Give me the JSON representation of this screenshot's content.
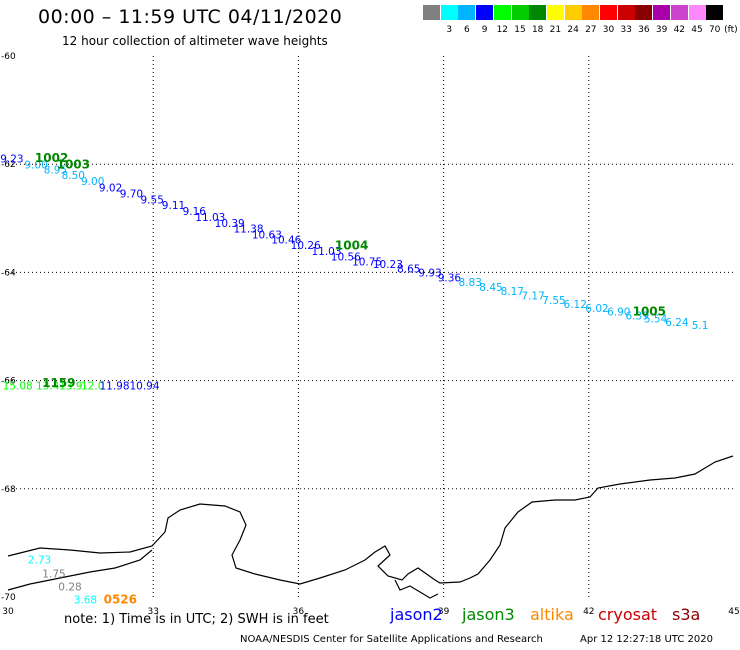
{
  "header": {
    "title": "00:00 – 11:59 UTC 04/11/2020",
    "subtitle": "12 hour collection of altimeter wave heights"
  },
  "legend": {
    "unit_label": "(ft)",
    "bins": [
      {
        "label": "",
        "color": "#808080"
      },
      {
        "label": "3",
        "color": "#00ffff"
      },
      {
        "label": "6",
        "color": "#00b4ff"
      },
      {
        "label": "9",
        "color": "#0000ff"
      },
      {
        "label": "12",
        "color": "#00ff00"
      },
      {
        "label": "15",
        "color": "#00cc00"
      },
      {
        "label": "18",
        "color": "#008800"
      },
      {
        "label": "21",
        "color": "#ffff00"
      },
      {
        "label": "24",
        "color": "#ffcc00"
      },
      {
        "label": "27",
        "color": "#ff8800"
      },
      {
        "label": "30",
        "color": "#ff0000"
      },
      {
        "label": "33",
        "color": "#cc0000"
      },
      {
        "label": "36",
        "color": "#880000"
      },
      {
        "label": "39",
        "color": "#aa00aa"
      },
      {
        "label": "42",
        "color": "#cc44cc"
      },
      {
        "label": "45",
        "color": "#ff88ff"
      },
      {
        "label": "70",
        "color": "#000000"
      }
    ]
  },
  "axes": {
    "lat_labels": [
      "-60",
      "-62",
      "-64",
      "-66",
      "-68",
      "-70"
    ],
    "lon_labels": [
      "30",
      "33",
      "36",
      "39",
      "42",
      "45"
    ]
  },
  "observations": [
    {
      "text": "9.23",
      "lon": 30.08,
      "lat": -61.97,
      "color": "#0000ff"
    },
    {
      "text": "9.00",
      "lon": 30.58,
      "lat": -62.08,
      "color": "#00b4ff"
    },
    {
      "text": "8.95",
      "lon": 30.98,
      "lat": -62.17,
      "color": "#00b4ff"
    },
    {
      "text": "8.50",
      "lon": 31.35,
      "lat": -62.27,
      "color": "#00b4ff"
    },
    {
      "text": "9.00",
      "lon": 31.75,
      "lat": -62.38,
      "color": "#00b4ff"
    },
    {
      "text": "9.02",
      "lon": 32.12,
      "lat": -62.5,
      "color": "#0000ff"
    },
    {
      "text": "9.70",
      "lon": 32.55,
      "lat": -62.62,
      "color": "#0000ff"
    },
    {
      "text": "9.55",
      "lon": 32.98,
      "lat": -62.73,
      "color": "#0000ff"
    },
    {
      "text": "9.11",
      "lon": 33.42,
      "lat": -62.83,
      "color": "#0000ff"
    },
    {
      "text": "9.16",
      "lon": 33.85,
      "lat": -62.94,
      "color": "#0000ff"
    },
    {
      "text": "11.03",
      "lon": 34.18,
      "lat": -63.05,
      "color": "#0000ff"
    },
    {
      "text": "10.39",
      "lon": 34.58,
      "lat": -63.16,
      "color": "#0000ff"
    },
    {
      "text": "11.38",
      "lon": 34.97,
      "lat": -63.26,
      "color": "#0000ff"
    },
    {
      "text": "10.63",
      "lon": 35.35,
      "lat": -63.37,
      "color": "#0000ff"
    },
    {
      "text": "10.46",
      "lon": 35.75,
      "lat": -63.47,
      "color": "#0000ff"
    },
    {
      "text": "10.26",
      "lon": 36.15,
      "lat": -63.57,
      "color": "#0000ff"
    },
    {
      "text": "11.03",
      "lon": 36.58,
      "lat": -63.68,
      "color": "#0000ff"
    },
    {
      "text": "10.56",
      "lon": 36.98,
      "lat": -63.78,
      "color": "#0000ff"
    },
    {
      "text": "10.75",
      "lon": 37.42,
      "lat": -63.87,
      "color": "#0000ff"
    },
    {
      "text": "10.23",
      "lon": 37.85,
      "lat": -63.92,
      "color": "#0000ff"
    },
    {
      "text": "8.65",
      "lon": 38.28,
      "lat": -64.0,
      "color": "#0000ff"
    },
    {
      "text": "9.93",
      "lon": 38.72,
      "lat": -64.08,
      "color": "#0000ff"
    },
    {
      "text": "9.36",
      "lon": 39.12,
      "lat": -64.17,
      "color": "#0000ff"
    },
    {
      "text": "8.83",
      "lon": 39.55,
      "lat": -64.25,
      "color": "#00b4ff"
    },
    {
      "text": "8.45",
      "lon": 39.98,
      "lat": -64.34,
      "color": "#00b4ff"
    },
    {
      "text": "8.17",
      "lon": 40.42,
      "lat": -64.42,
      "color": "#00b4ff"
    },
    {
      "text": "7.17",
      "lon": 40.85,
      "lat": -64.5,
      "color": "#00b4ff"
    },
    {
      "text": "7.55",
      "lon": 41.28,
      "lat": -64.58,
      "color": "#00b4ff"
    },
    {
      "text": "6.12",
      "lon": 41.72,
      "lat": -64.66,
      "color": "#00b4ff"
    },
    {
      "text": "6.02",
      "lon": 42.17,
      "lat": -64.73,
      "color": "#00b4ff"
    },
    {
      "text": "6.90",
      "lon": 42.62,
      "lat": -64.8,
      "color": "#00b4ff"
    },
    {
      "text": "6.39",
      "lon": 43.0,
      "lat": -64.87,
      "color": "#00b4ff"
    },
    {
      "text": "5.54",
      "lon": 43.38,
      "lat": -64.93,
      "color": "#00b4ff"
    },
    {
      "text": "6.24",
      "lon": 43.82,
      "lat": -64.99,
      "color": "#00b4ff"
    },
    {
      "text": "5.1",
      "lon": 44.3,
      "lat": -65.05,
      "color": "#00b4ff"
    },
    {
      "text": "15.08",
      "lon": 30.2,
      "lat": -66.16,
      "color": "#00ff00"
    },
    {
      "text": "13.4",
      "lon": 30.82,
      "lat": -66.16,
      "color": "#00ff00"
    },
    {
      "text": "13.9",
      "lon": 31.3,
      "lat": -66.16,
      "color": "#00ff00"
    },
    {
      "text": "12.0",
      "lon": 31.75,
      "lat": -66.16,
      "color": "#00ff00"
    },
    {
      "text": "11.98",
      "lon": 32.2,
      "lat": -66.16,
      "color": "#0000ff"
    },
    {
      "text": "10.94",
      "lon": 32.82,
      "lat": -66.16,
      "color": "#0000ff"
    },
    {
      "text": "2.73",
      "lon": 30.65,
      "lat": -69.38,
      "color": "#00ffff"
    },
    {
      "text": "1.75",
      "lon": 30.95,
      "lat": -69.64,
      "color": "#808080"
    },
    {
      "text": "0.28",
      "lon": 31.28,
      "lat": -69.88,
      "color": "#808080"
    },
    {
      "text": "3.68",
      "lon": 31.6,
      "lat": -70.12,
      "color": "#00ffff"
    }
  ],
  "time_tags": [
    {
      "text": "1002",
      "lon": 30.9,
      "lat": -61.96,
      "color": "#008800"
    },
    {
      "text": "1003",
      "lon": 31.35,
      "lat": -62.08,
      "color": "#008800"
    },
    {
      "text": "1004",
      "lon": 37.1,
      "lat": -63.58,
      "color": "#008800"
    },
    {
      "text": "1005",
      "lon": 43.25,
      "lat": -64.8,
      "color": "#008800"
    },
    {
      "text": "1159",
      "lon": 31.05,
      "lat": -66.12,
      "color": "#008800"
    },
    {
      "text": "0526",
      "lon": 32.32,
      "lat": -70.12,
      "color": "#ff8800"
    }
  ],
  "note": "note:  1) Time is in UTC;  2) SWH is in feet",
  "satellites": [
    {
      "name": "jason2",
      "color": "#0000ff"
    },
    {
      "name": "jason3",
      "color": "#008800"
    },
    {
      "name": "altika",
      "color": "#ff8800"
    },
    {
      "name": "cryosat",
      "color": "#cc0000"
    },
    {
      "name": "s3a",
      "color": "#880000"
    }
  ],
  "credit": "NOAA/NESDIS Center for Satellite Applications and Research",
  "timestamp": "Apr 12 12:27:18 UTC 2020"
}
